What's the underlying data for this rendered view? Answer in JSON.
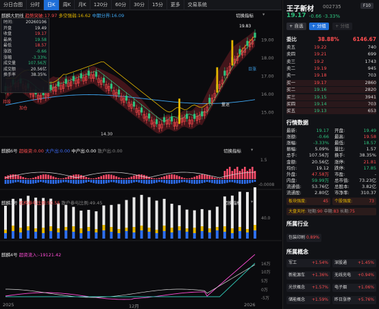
{
  "tabs": [
    "分日合图",
    "分时",
    "日K",
    "周K",
    "月K",
    "120分",
    "60分",
    "30分",
    "15分",
    "更多",
    "区间选择",
    "交易系统"
  ],
  "active_tab": "日K",
  "panels": {
    "main": {
      "name": "麒麟大阴线",
      "s1": "趋势突破:17.97",
      "s2": "多空强弱:16.62",
      "s3": "中期分界:16.09",
      "switch": "切换指标",
      "high": "19.83",
      "low": "14.30",
      "tag_hold": "持股",
      "tag_buy": "加仓",
      "tag_rise": "日涨",
      "tag_chg": "量退"
    },
    "p2": {
      "name": "麒麟6号",
      "s1": "超级资:0.00",
      "s2": "大户出:0.00",
      "s3": "中户出:0.00",
      "s4": "散户出:0.00",
      "switch": "切换指标",
      "ax1": "1.5",
      "ax2": "-0.0008"
    },
    "p3": {
      "name": "麒麟3号",
      "s1": "机构参与比例:50.55",
      "s2": "散户参与比例:49.45",
      "switch": "切换指标",
      "ax1": "40.0"
    },
    "p4": {
      "name": "麒麟4号",
      "s1": "超资流入:-19121.42",
      "ax1": "16万",
      "ax2": "10万",
      "ax3": "5万",
      "ax4": "0万",
      "ax5": "-5万"
    }
  },
  "main_axis": [
    "19.00",
    "18.00",
    "17.00",
    "16.00",
    "15.00"
  ],
  "xaxis": {
    "left": "2025",
    "mid": "12月",
    "right": "2026"
  },
  "info_box": {
    "date": "20260106",
    "rows": [
      [
        "开盘",
        "19.49"
      ],
      [
        "收盘",
        "19.17"
      ],
      [
        "最高",
        "19.58"
      ],
      [
        "最低",
        "18.57"
      ],
      [
        "涨跌",
        "-0.66"
      ],
      [
        "涨幅",
        "-3.33%"
      ],
      [
        "成交量",
        "107.56万"
      ],
      [
        "成交额",
        "20.56亿"
      ],
      [
        "换手率",
        "38.35%"
      ]
    ],
    "labels": {
      "time": "时间:"
    }
  },
  "stock": {
    "name": "王子新材",
    "code": "002735",
    "f10": "F10",
    "price": "19.17",
    "change": "-0.66",
    "pct": "-3.33%",
    "btn_add": "+ 自选",
    "btn_group": "+ 分组",
    "btn_group2": "+ 分组"
  },
  "order_book": {
    "title": "委比",
    "wb": "38.88%",
    "wc": "6146.67",
    "sells": [
      [
        "卖五",
        "19.22",
        "740"
      ],
      [
        "卖四",
        "19.21",
        "699"
      ],
      [
        "卖三",
        "19.2",
        "1743"
      ],
      [
        "卖二",
        "19.19",
        "945"
      ],
      [
        "卖一",
        "19.18",
        "703"
      ]
    ],
    "buys": [
      [
        "买一",
        "19.17",
        "2860"
      ],
      [
        "买二",
        "19.16",
        "2820"
      ],
      [
        "买三",
        "19.15",
        "3941"
      ],
      [
        "买四",
        "19.14",
        "703"
      ],
      [
        "买五",
        "19.13",
        "653"
      ]
    ]
  },
  "quote": {
    "title": "行情数据",
    "rows": [
      [
        "最新:",
        "19.17",
        "开盘:",
        "19.49"
      ],
      [
        "涨额:",
        "-0.66",
        "最高:",
        "19.58"
      ],
      [
        "涨幅:",
        "-3.33%",
        "最低:",
        "18.57"
      ],
      [
        "振幅:",
        "5.09%",
        "量比:",
        "1.57"
      ],
      [
        "总手:",
        "107.56万",
        "换手:",
        "38.35%"
      ],
      [
        "金额:",
        "20.56亿",
        "涨停:",
        "21.81"
      ],
      [
        "均价:",
        "19.12",
        "跌停:",
        "17.85"
      ],
      [
        "外盘:",
        "47.58万",
        "市盈:",
        "-"
      ],
      [
        "内盘:",
        "59.99万",
        "总市值:",
        "73.23亿"
      ],
      [
        "流通值:",
        "53.76亿",
        "总股本:",
        "3.82亿"
      ],
      [
        "流通股:",
        "2.80亿",
        "市净率:",
        "310.37"
      ]
    ]
  },
  "strength": {
    "a": "板块强度:",
    "av": "45",
    "b": "个股强度:",
    "bv": "73"
  },
  "sentiment": {
    "a": "大盘天时:",
    "b": "短期:",
    "bv": "90",
    "c": "中期:",
    "cv": "83",
    "d": "长期:",
    "dv": "75"
  },
  "industry": {
    "title": "所属行业",
    "items": [
      [
        "包装印刷",
        "0.89%"
      ]
    ]
  },
  "concepts": {
    "title": "所属概念",
    "items": [
      [
        "军工",
        "+1.54%",
        "深股通",
        "+1.45%"
      ],
      [
        "新能源车",
        "+1.36%",
        "无线充电",
        "+0.94%"
      ],
      [
        "光伏概念",
        "+1.57%",
        "电子烟",
        "+1.06%"
      ],
      [
        "储能概念",
        "+1.59%",
        "昨日涨停",
        "+5.76%"
      ]
    ]
  }
}
